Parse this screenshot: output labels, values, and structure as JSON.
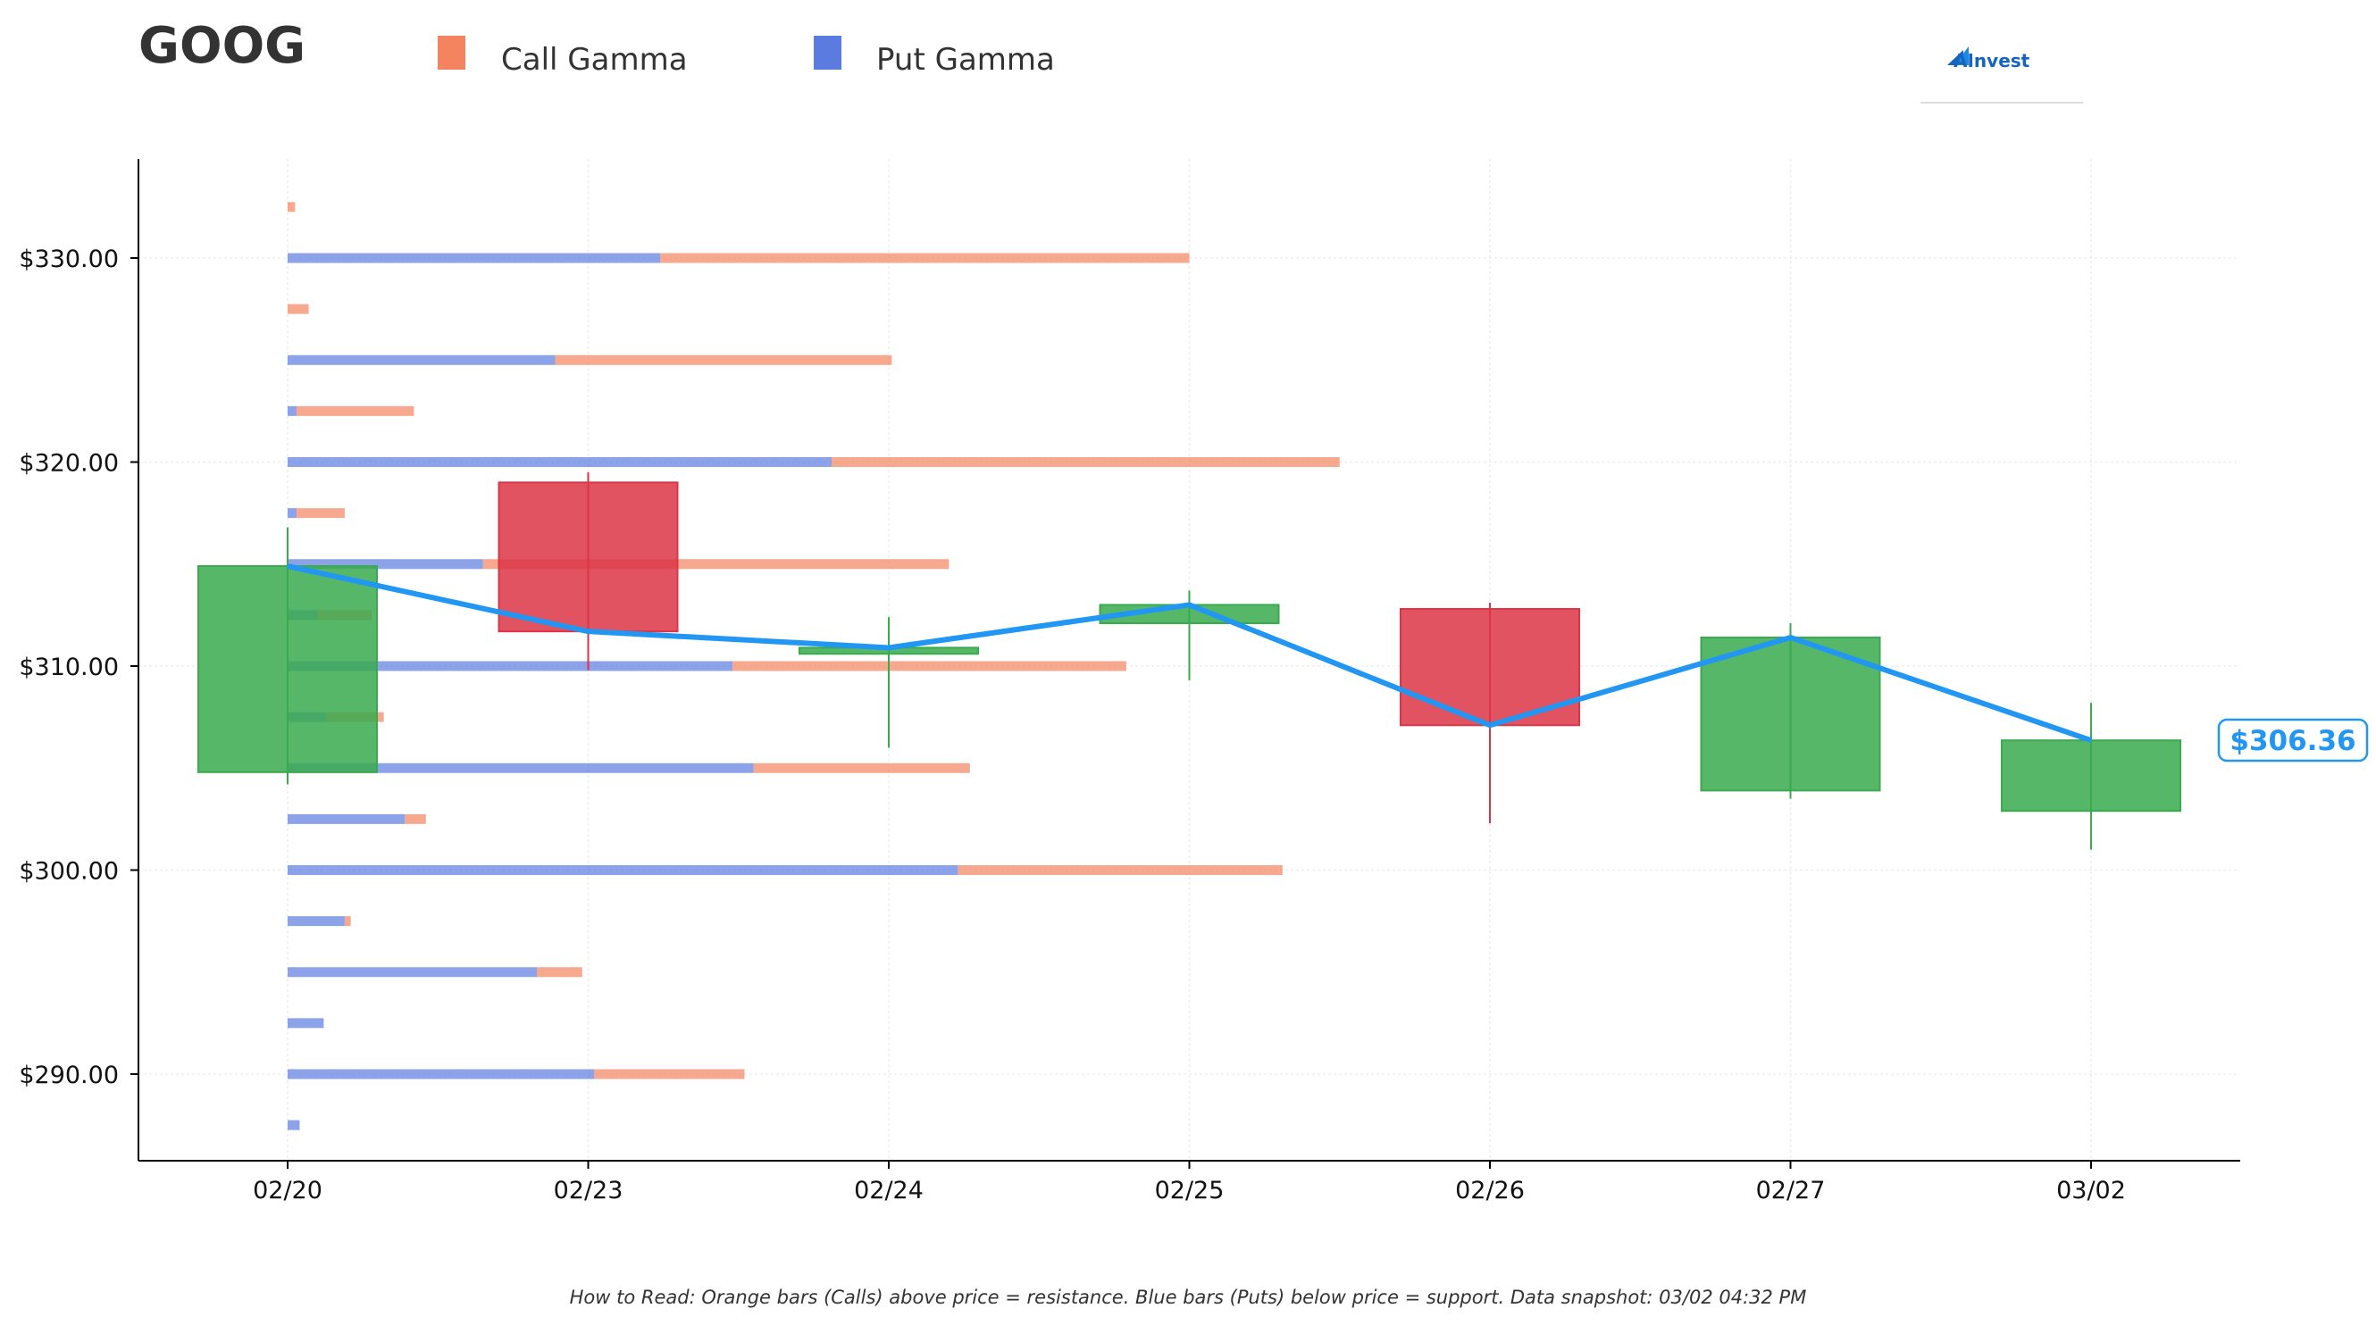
{
  "ticker": "GOOG",
  "legend": {
    "call_label": "Call Gamma",
    "put_label": "Put Gamma"
  },
  "brand": {
    "name": "AInvest",
    "icon": "ainvest-logo-icon"
  },
  "colors": {
    "call": "#f4845f",
    "put": "#5b7be0",
    "up": "#3aaa4f",
    "down": "#dc3545",
    "line": "#2196f3"
  },
  "footer": "How to Read: Orange bars (Calls) above price = resistance. Blue bars (Puts) below price = support. Data snapshot: 03/02 04:32 PM",
  "chart_data": {
    "type": "candlestick",
    "x_ticks": [
      "02/20",
      "02/23",
      "02/24",
      "02/25",
      "02/26",
      "02/27",
      "03/02"
    ],
    "y_ticks": [
      "$290.00",
      "$300.00",
      "$310.00",
      "$320.00",
      "$330.00"
    ],
    "ylim": [
      285,
      335
    ],
    "candles": [
      {
        "date": "02/20",
        "open": 304.8,
        "high": 316.8,
        "low": 304.2,
        "close": 314.9
      },
      {
        "date": "02/23",
        "open": 319.0,
        "high": 319.5,
        "low": 309.8,
        "close": 311.7
      },
      {
        "date": "02/24",
        "open": 310.6,
        "high": 312.4,
        "low": 306.0,
        "close": 310.9
      },
      {
        "date": "02/25",
        "open": 312.1,
        "high": 313.7,
        "low": 309.3,
        "close": 313.0
      },
      {
        "date": "02/26",
        "open": 312.8,
        "high": 313.1,
        "low": 302.3,
        "close": 307.1
      },
      {
        "date": "02/27",
        "open": 303.9,
        "high": 312.1,
        "low": 303.5,
        "close": 311.4
      },
      {
        "date": "03/02",
        "open": 302.9,
        "high": 308.2,
        "low": 301.0,
        "close": 306.36
      }
    ],
    "close_line": [
      314.9,
      311.7,
      310.9,
      313.0,
      307.1,
      311.4,
      306.36
    ],
    "last_price_label": "$306.36",
    "gamma_note": "Horizontal bar lengths expressed in x-axis date-slot units starting at 02/20",
    "gamma": [
      {
        "strike": 332.5,
        "put": 0.0,
        "call": 0.025
      },
      {
        "strike": 330,
        "put": 1.24,
        "call": 1.76
      },
      {
        "strike": 327.5,
        "put": 0.0,
        "call": 0.07
      },
      {
        "strike": 325,
        "put": 0.89,
        "call": 1.12
      },
      {
        "strike": 322.5,
        "put": 0.03,
        "call": 0.39
      },
      {
        "strike": 320,
        "put": 1.81,
        "call": 1.69
      },
      {
        "strike": 317.5,
        "put": 0.03,
        "call": 0.16
      },
      {
        "strike": 315,
        "put": 0.65,
        "call": 1.55
      },
      {
        "strike": 312.5,
        "put": 0.1,
        "call": 0.18
      },
      {
        "strike": 310,
        "put": 1.48,
        "call": 1.31
      },
      {
        "strike": 307.5,
        "put": 0.13,
        "call": 0.19
      },
      {
        "strike": 305,
        "put": 1.55,
        "call": 0.72
      },
      {
        "strike": 302.5,
        "put": 0.39,
        "call": 0.07
      },
      {
        "strike": 300,
        "put": 2.23,
        "call": 1.08
      },
      {
        "strike": 297.5,
        "put": 0.19,
        "call": 0.02
      },
      {
        "strike": 295,
        "put": 0.83,
        "call": 0.15
      },
      {
        "strike": 292.5,
        "put": 0.12,
        "call": 0.0
      },
      {
        "strike": 290,
        "put": 1.02,
        "call": 0.5
      },
      {
        "strike": 287.5,
        "put": 0.04,
        "call": 0.0
      }
    ]
  }
}
